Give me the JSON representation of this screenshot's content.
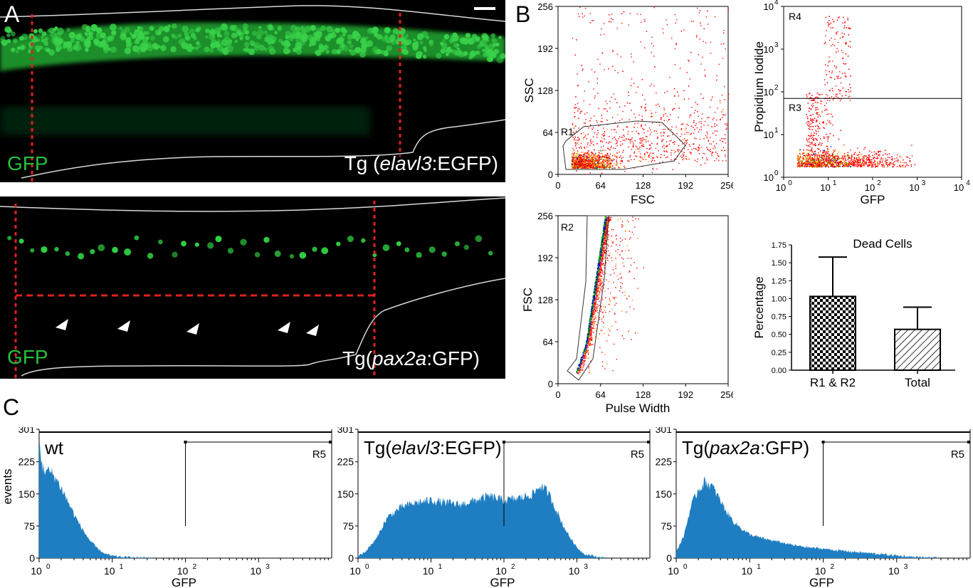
{
  "panel_labels": {
    "a": "A",
    "b": "B",
    "c": "C"
  },
  "panel_a": {
    "top": {
      "label_prefix": "Tg (",
      "label_italic": "elavl3",
      "label_suffix": ":EGFP)",
      "channel": "GFP"
    },
    "bottom": {
      "label_prefix": "Tg(",
      "label_italic": "pax2a",
      "label_suffix": ":GFP)",
      "channel": "GFP"
    },
    "colors": {
      "green": "#27c03c",
      "guide": "#e02020",
      "outline": "#d8d8d8",
      "background": "#000000"
    }
  },
  "chart_data": [
    {
      "type": "scatter",
      "id": "ssc-vs-fsc",
      "xlabel": "FSC",
      "ylabel": "SSC",
      "x_ticks": [
        "0",
        "64",
        "128",
        "192",
        "256"
      ],
      "y_ticks": [
        "0",
        "64",
        "128",
        "192",
        "256"
      ],
      "xlim": [
        0,
        256
      ],
      "ylim": [
        0,
        256
      ],
      "gates": [
        {
          "name": "R1"
        }
      ],
      "density_colors": [
        "#ff0000",
        "#ff8c00",
        "#ffd400",
        "#00b000",
        "#0000c0"
      ]
    },
    {
      "type": "scatter",
      "id": "pi-vs-gfp",
      "xlabel": "GFP",
      "ylabel": "Propidium Iodide",
      "scale": "log",
      "x_ticks": [
        {
          "base": "10",
          "exp": "0"
        },
        {
          "base": "10",
          "exp": "1"
        },
        {
          "base": "10",
          "exp": "2"
        },
        {
          "base": "10",
          "exp": "3"
        },
        {
          "base": "10",
          "exp": "4"
        }
      ],
      "y_ticks": [
        {
          "base": "10",
          "exp": "0"
        },
        {
          "base": "10",
          "exp": "1"
        },
        {
          "base": "10",
          "exp": "2"
        },
        {
          "base": "10",
          "exp": "3"
        },
        {
          "base": "10",
          "exp": "4"
        }
      ],
      "xlim": [
        1,
        10000
      ],
      "ylim": [
        1,
        10000
      ],
      "gates": [
        {
          "name": "R4"
        },
        {
          "name": "R3"
        }
      ],
      "threshold_y": 70
    },
    {
      "type": "scatter",
      "id": "fsc-vs-pulse-width",
      "xlabel": "Pulse Width",
      "ylabel": "FSC",
      "x_ticks": [
        "0",
        "64",
        "128",
        "192",
        "256"
      ],
      "y_ticks": [
        "0",
        "64",
        "128",
        "192",
        "256"
      ],
      "xlim": [
        0,
        256
      ],
      "ylim": [
        0,
        256
      ],
      "gates": [
        {
          "name": "R2"
        }
      ]
    },
    {
      "type": "bar",
      "id": "dead-cells",
      "title": "Dead Cells",
      "ylabel": "Percentage",
      "categories": [
        "R1 & R2",
        "Total"
      ],
      "values": [
        1.03,
        0.57
      ],
      "errors": [
        0.55,
        0.31
      ],
      "patterns": [
        "checker",
        "diagonal"
      ],
      "ylim": [
        0,
        1.75
      ],
      "y_ticks": [
        "0.00",
        "0.25",
        "0.50",
        "0.75",
        "1.00",
        "1.25",
        "1.50",
        "1.75"
      ]
    },
    {
      "type": "area",
      "id": "hist-wt",
      "label": "wt",
      "gate": "R5",
      "xlabel": "GFP",
      "ylabel": "events",
      "ylim": [
        0,
        301
      ],
      "y_ticks": [
        "0",
        "75",
        "150",
        "225",
        "301"
      ],
      "x_ticks": [
        {
          "base": "10",
          "exp": "0"
        },
        {
          "base": "10",
          "exp": "1"
        },
        {
          "base": "10",
          "exp": "2"
        },
        {
          "base": "10",
          "exp": "3"
        }
      ],
      "x_log_decades": [
        0,
        4
      ],
      "gate_start_log": 2.0,
      "fill": "#1f7ec2",
      "profile": [
        [
          0,
          270
        ],
        [
          0.05,
          210
        ],
        [
          0.1,
          205
        ],
        [
          0.2,
          195
        ],
        [
          0.3,
          165
        ],
        [
          0.4,
          130
        ],
        [
          0.5,
          95
        ],
        [
          0.6,
          65
        ],
        [
          0.7,
          40
        ],
        [
          0.8,
          22
        ],
        [
          0.9,
          10
        ],
        [
          1.0,
          5
        ],
        [
          1.1,
          3
        ],
        [
          1.3,
          1
        ],
        [
          1.6,
          0
        ],
        [
          4,
          0
        ]
      ]
    },
    {
      "type": "area",
      "id": "hist-elavl3",
      "label_prefix": "Tg(",
      "label_italic": "elavl3",
      "label_suffix": ":EGFP)",
      "gate": "R5",
      "xlabel": "GFP",
      "ylim": [
        0,
        301
      ],
      "y_ticks": [
        "0",
        "75",
        "150",
        "225",
        "301"
      ],
      "x_ticks": [
        {
          "base": "10",
          "exp": "0"
        },
        {
          "base": "10",
          "exp": "1"
        },
        {
          "base": "10",
          "exp": "2"
        },
        {
          "base": "10",
          "exp": "3"
        }
      ],
      "x_log_decades": [
        0,
        4
      ],
      "gate_start_log": 2.0,
      "fill": "#1f7ec2",
      "profile": [
        [
          0,
          5
        ],
        [
          0.1,
          15
        ],
        [
          0.25,
          45
        ],
        [
          0.4,
          95
        ],
        [
          0.6,
          120
        ],
        [
          0.8,
          130
        ],
        [
          1.0,
          135
        ],
        [
          1.2,
          130
        ],
        [
          1.4,
          125
        ],
        [
          1.6,
          135
        ],
        [
          1.8,
          145
        ],
        [
          2.0,
          135
        ],
        [
          2.2,
          140
        ],
        [
          2.4,
          150
        ],
        [
          2.5,
          170
        ],
        [
          2.6,
          155
        ],
        [
          2.7,
          120
        ],
        [
          2.8,
          80
        ],
        [
          2.9,
          50
        ],
        [
          3.0,
          25
        ],
        [
          3.1,
          10
        ],
        [
          3.25,
          4
        ],
        [
          3.4,
          0
        ],
        [
          4,
          0
        ]
      ]
    },
    {
      "type": "area",
      "id": "hist-pax2a",
      "label_prefix": "Tg(",
      "label_italic": "pax2a",
      "label_suffix": ":GFP)",
      "gate": "R5",
      "xlabel": "GFP",
      "ylim": [
        0,
        301
      ],
      "y_ticks": [
        "0",
        "75",
        "150",
        "225",
        "301"
      ],
      "x_ticks": [
        {
          "base": "10",
          "exp": "0"
        },
        {
          "base": "10",
          "exp": "1"
        },
        {
          "base": "10",
          "exp": "2"
        },
        {
          "base": "10",
          "exp": "3"
        }
      ],
      "x_log_decades": [
        0,
        4
      ],
      "gate_start_log": 2.0,
      "fill": "#1f7ec2",
      "profile": [
        [
          0,
          15
        ],
        [
          0.1,
          50
        ],
        [
          0.2,
          120
        ],
        [
          0.3,
          160
        ],
        [
          0.4,
          180
        ],
        [
          0.5,
          165
        ],
        [
          0.6,
          135
        ],
        [
          0.7,
          105
        ],
        [
          0.8,
          82
        ],
        [
          0.9,
          68
        ],
        [
          1.0,
          55
        ],
        [
          1.2,
          45
        ],
        [
          1.4,
          38
        ],
        [
          1.6,
          30
        ],
        [
          1.8,
          25
        ],
        [
          2.0,
          22
        ],
        [
          2.2,
          18
        ],
        [
          2.4,
          15
        ],
        [
          2.6,
          12
        ],
        [
          2.8,
          9
        ],
        [
          3.0,
          6
        ],
        [
          3.2,
          3
        ],
        [
          3.4,
          1
        ],
        [
          3.6,
          0
        ],
        [
          4,
          0
        ]
      ]
    }
  ]
}
